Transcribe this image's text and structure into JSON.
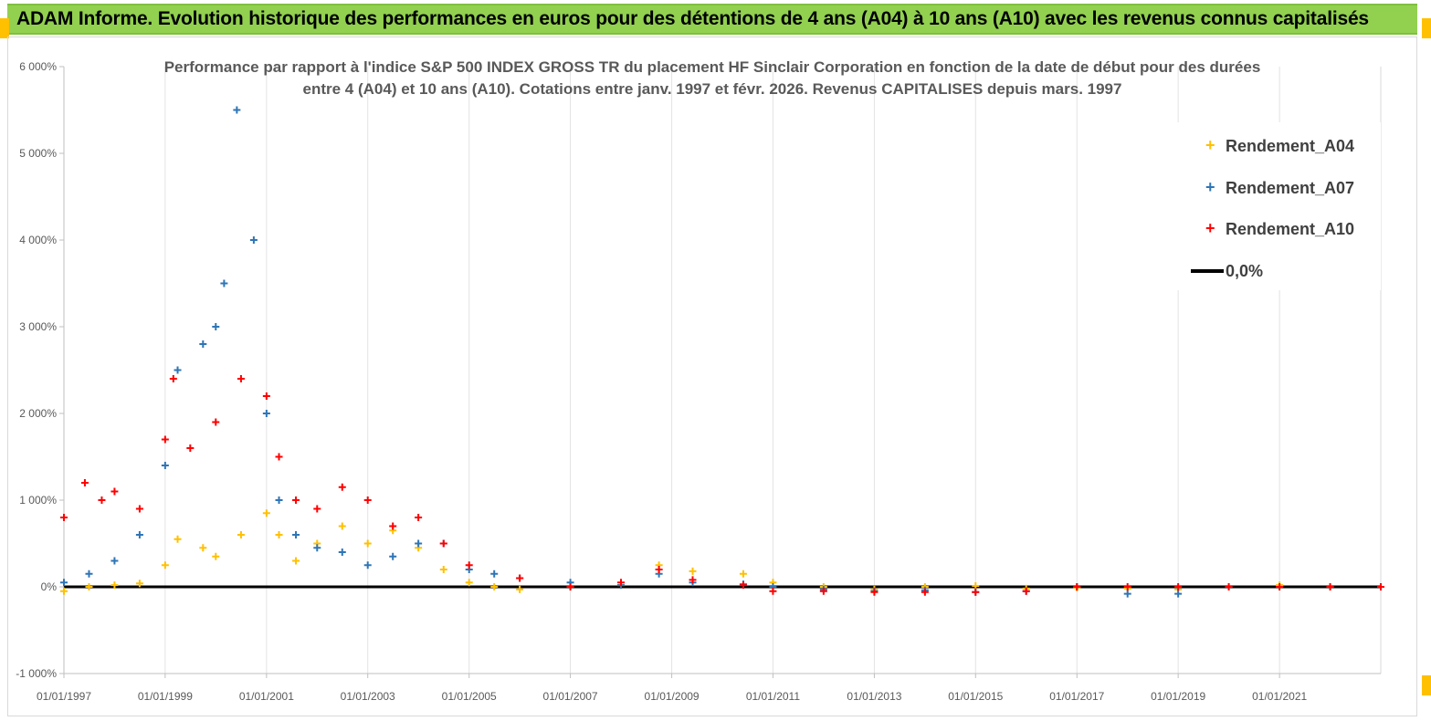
{
  "banner": {
    "title": "ADAM Informe. Evolution historique des performances en euros pour des détentions de 4 ans (A04) à 10 ans (A10) avec les revenus connus capitalisés"
  },
  "chart_data": {
    "type": "scatter",
    "title": "Performance par rapport à l'indice S&P 500 INDEX GROSS TR  du placement HF Sinclair Corporation en fonction de la date de début pour des durées",
    "subtitle": "entre 4 (A04) et 10 ans (A10).  Cotations entre janv. 1997 et févr. 2026. Revenus  CAPITALISES depuis mars. 1997",
    "xlabel": "",
    "ylabel": "",
    "x_range": [
      "1997-01-01",
      "2023-01-01"
    ],
    "ylim": [
      -1000,
      6000
    ],
    "y_ticks": [
      "-1 000%",
      "0%",
      "1 000%",
      "2 000%",
      "3 000%",
      "4 000%",
      "5 000%",
      "6 000%"
    ],
    "y_tick_values": [
      -1000,
      0,
      1000,
      2000,
      3000,
      4000,
      5000,
      6000
    ],
    "x_ticks": [
      "01/01/1997",
      "01/01/1999",
      "01/01/2001",
      "01/01/2003",
      "01/01/2005",
      "01/01/2007",
      "01/01/2009",
      "01/01/2011",
      "01/01/2013",
      "01/01/2015",
      "01/01/2017",
      "01/01/2019",
      "01/01/2021"
    ],
    "x_tick_values": [
      "1997-01-01",
      "1999-01-01",
      "2001-01-01",
      "2003-01-01",
      "2005-01-01",
      "2007-01-01",
      "2009-01-01",
      "2011-01-01",
      "2013-01-01",
      "2015-01-01",
      "2017-01-01",
      "2019-01-01",
      "2021-01-01"
    ],
    "grid": "vertical",
    "legend_position": "top-right",
    "series": [
      {
        "name": "Rendement_A04",
        "color": "#ffc000",
        "marker": "plus",
        "points": [
          [
            "1997-01-01",
            -50
          ],
          [
            "1997-07-01",
            0
          ],
          [
            "1998-01-01",
            20
          ],
          [
            "1998-07-01",
            40
          ],
          [
            "1999-01-01",
            250
          ],
          [
            "1999-04-01",
            550
          ],
          [
            "1999-10-01",
            450
          ],
          [
            "2000-01-01",
            350
          ],
          [
            "2000-07-01",
            600
          ],
          [
            "2001-01-01",
            850
          ],
          [
            "2001-04-01",
            600
          ],
          [
            "2001-08-01",
            300
          ],
          [
            "2002-01-01",
            500
          ],
          [
            "2002-07-01",
            700
          ],
          [
            "2003-01-01",
            500
          ],
          [
            "2003-07-01",
            650
          ],
          [
            "2004-01-01",
            450
          ],
          [
            "2004-07-01",
            200
          ],
          [
            "2005-01-01",
            50
          ],
          [
            "2005-07-01",
            0
          ],
          [
            "2006-01-01",
            -30
          ],
          [
            "2007-01-01",
            0
          ],
          [
            "2008-01-01",
            20
          ],
          [
            "2008-10-01",
            250
          ],
          [
            "2009-06-01",
            180
          ],
          [
            "2010-06-01",
            150
          ],
          [
            "2011-01-01",
            50
          ],
          [
            "2012-01-01",
            0
          ],
          [
            "2013-01-01",
            -30
          ],
          [
            "2014-01-01",
            0
          ],
          [
            "2015-01-01",
            10
          ],
          [
            "2016-01-01",
            -20
          ],
          [
            "2017-01-01",
            -10
          ],
          [
            "2018-01-01",
            -20
          ],
          [
            "2019-01-01",
            -30
          ],
          [
            "2020-01-01",
            0
          ],
          [
            "2021-01-01",
            20
          ],
          [
            "2022-01-01",
            0
          ],
          [
            "2023-01-01",
            0
          ]
        ]
      },
      {
        "name": "Rendement_A07",
        "color": "#2e75b6",
        "marker": "plus",
        "points": [
          [
            "1997-01-01",
            50
          ],
          [
            "1997-07-01",
            150
          ],
          [
            "1998-01-01",
            300
          ],
          [
            "1998-07-01",
            600
          ],
          [
            "1999-01-01",
            1400
          ],
          [
            "1999-04-01",
            2500
          ],
          [
            "1999-10-01",
            2800
          ],
          [
            "2000-01-01",
            3000
          ],
          [
            "2000-03-01",
            3500
          ],
          [
            "2000-06-01",
            5500
          ],
          [
            "2000-10-01",
            4000
          ],
          [
            "2001-01-01",
            2000
          ],
          [
            "2001-04-01",
            1000
          ],
          [
            "2001-08-01",
            600
          ],
          [
            "2002-01-01",
            450
          ],
          [
            "2002-07-01",
            400
          ],
          [
            "2003-01-01",
            250
          ],
          [
            "2003-07-01",
            350
          ],
          [
            "2004-01-01",
            500
          ],
          [
            "2004-07-01",
            500
          ],
          [
            "2005-01-01",
            200
          ],
          [
            "2005-07-01",
            150
          ],
          [
            "2006-01-01",
            100
          ],
          [
            "2007-01-01",
            50
          ],
          [
            "2008-01-01",
            20
          ],
          [
            "2008-10-01",
            150
          ],
          [
            "2009-06-01",
            50
          ],
          [
            "2010-06-01",
            30
          ],
          [
            "2011-01-01",
            0
          ],
          [
            "2012-01-01",
            -30
          ],
          [
            "2013-01-01",
            -50
          ],
          [
            "2014-01-01",
            -40
          ],
          [
            "2015-01-01",
            -60
          ],
          [
            "2016-01-01",
            -50
          ],
          [
            "2017-01-01",
            0
          ],
          [
            "2018-01-01",
            -80
          ],
          [
            "2019-01-01",
            -80
          ]
        ]
      },
      {
        "name": "Rendement_A10",
        "color": "#ff0000",
        "marker": "plus",
        "points": [
          [
            "1997-01-01",
            800
          ],
          [
            "1997-06-01",
            1200
          ],
          [
            "1997-10-01",
            1000
          ],
          [
            "1998-01-01",
            1100
          ],
          [
            "1998-07-01",
            900
          ],
          [
            "1999-01-01",
            1700
          ],
          [
            "1999-03-01",
            2400
          ],
          [
            "1999-07-01",
            1600
          ],
          [
            "2000-01-01",
            1900
          ],
          [
            "2000-07-01",
            2400
          ],
          [
            "2001-01-01",
            2200
          ],
          [
            "2001-04-01",
            1500
          ],
          [
            "2001-08-01",
            1000
          ],
          [
            "2002-01-01",
            900
          ],
          [
            "2002-07-01",
            1150
          ],
          [
            "2003-01-01",
            1000
          ],
          [
            "2003-07-01",
            700
          ],
          [
            "2004-01-01",
            800
          ],
          [
            "2004-07-01",
            500
          ],
          [
            "2005-01-01",
            250
          ],
          [
            "2006-01-01",
            100
          ],
          [
            "2007-01-01",
            0
          ],
          [
            "2008-01-01",
            50
          ],
          [
            "2008-10-01",
            200
          ],
          [
            "2009-06-01",
            80
          ],
          [
            "2010-06-01",
            20
          ],
          [
            "2011-01-01",
            -50
          ],
          [
            "2012-01-01",
            -50
          ],
          [
            "2013-01-01",
            -60
          ],
          [
            "2014-01-01",
            -60
          ],
          [
            "2015-01-01",
            -60
          ],
          [
            "2016-01-01",
            -50
          ],
          [
            "2017-01-01",
            0
          ],
          [
            "2018-01-01",
            0
          ],
          [
            "2019-01-01",
            0
          ],
          [
            "2020-01-01",
            0
          ],
          [
            "2021-01-01",
            0
          ],
          [
            "2022-01-01",
            0
          ],
          [
            "2023-01-01",
            0
          ]
        ]
      },
      {
        "name": "0,0%",
        "color": "#000000",
        "marker": "line",
        "points": [
          [
            "1997-01-01",
            0
          ],
          [
            "2023-01-01",
            0
          ]
        ]
      }
    ]
  }
}
